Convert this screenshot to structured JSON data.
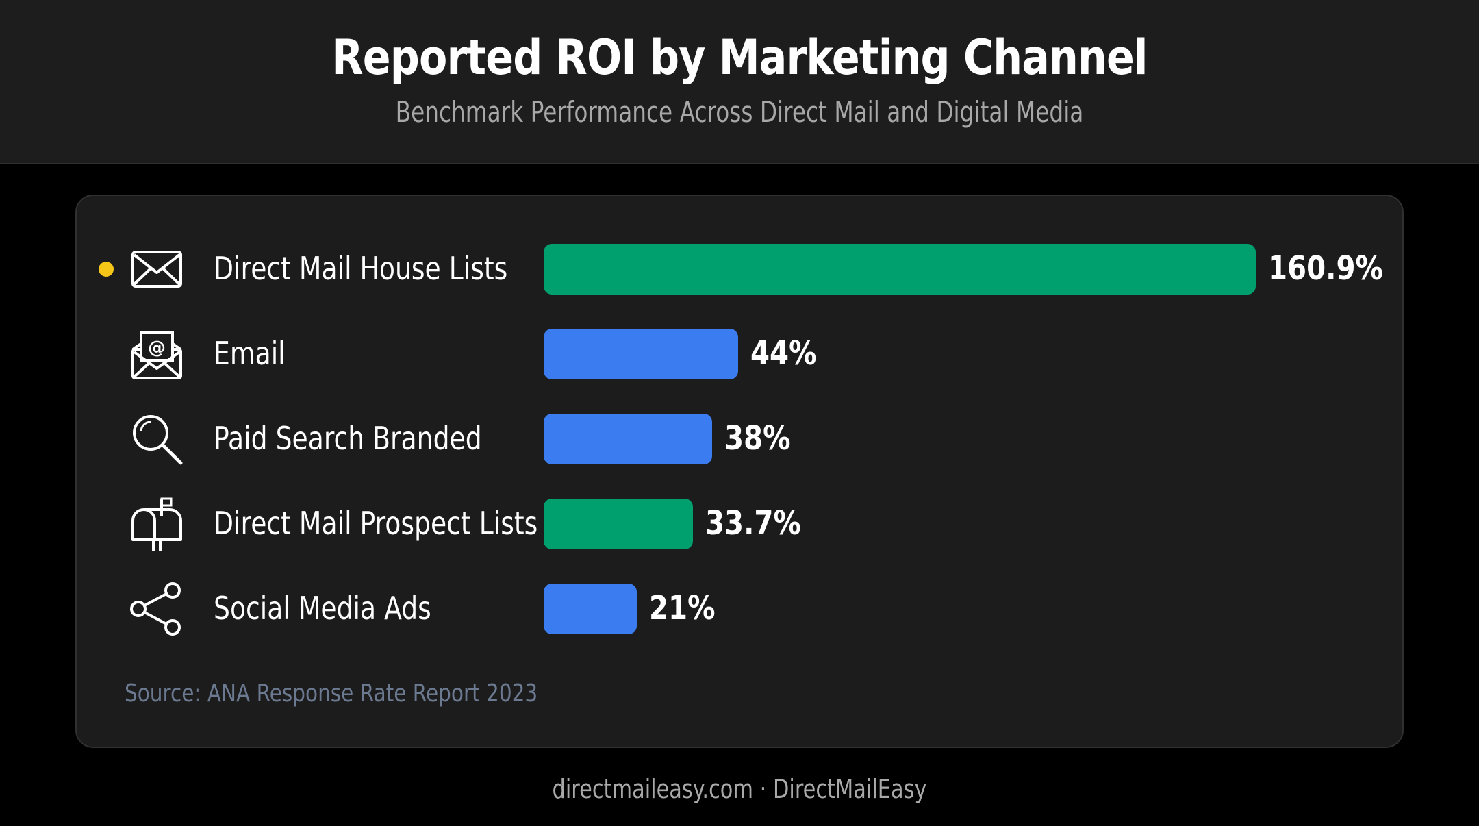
{
  "header": {
    "title": "Reported ROI by Marketing Channel",
    "subtitle": "Benchmark Performance Across Direct Mail and Digital Media"
  },
  "chart_data": {
    "type": "bar",
    "orientation": "horizontal",
    "title": "Reported ROI by Marketing Channel",
    "subtitle": "Benchmark Performance Across Direct Mail and Digital Media",
    "categories": [
      "Direct Mail House Lists",
      "Email",
      "Paid Search Branded",
      "Direct Mail Prospect Lists",
      "Social Media Ads"
    ],
    "values": [
      160.9,
      44,
      38,
      33.7,
      21
    ],
    "value_labels": [
      "160.9%",
      "44%",
      "38%",
      "33.7%",
      "21%"
    ],
    "bar_colors": [
      "#00a06e",
      "#3b7cf0",
      "#3b7cf0",
      "#00a06e",
      "#3b7cf0"
    ],
    "icons": [
      "envelope-icon",
      "email-at-icon",
      "search-icon",
      "mailbox-icon",
      "share-icon"
    ],
    "highlighted": [
      true,
      false,
      false,
      false,
      false
    ],
    "highlight_color": "#f5c518",
    "xlim": [
      0,
      160.9
    ],
    "grid": false,
    "legend": "none",
    "source": "Source: ANA Response Rate Report 2023"
  },
  "footer": {
    "text": "directmaileasy.com · DirectMailEasy"
  }
}
